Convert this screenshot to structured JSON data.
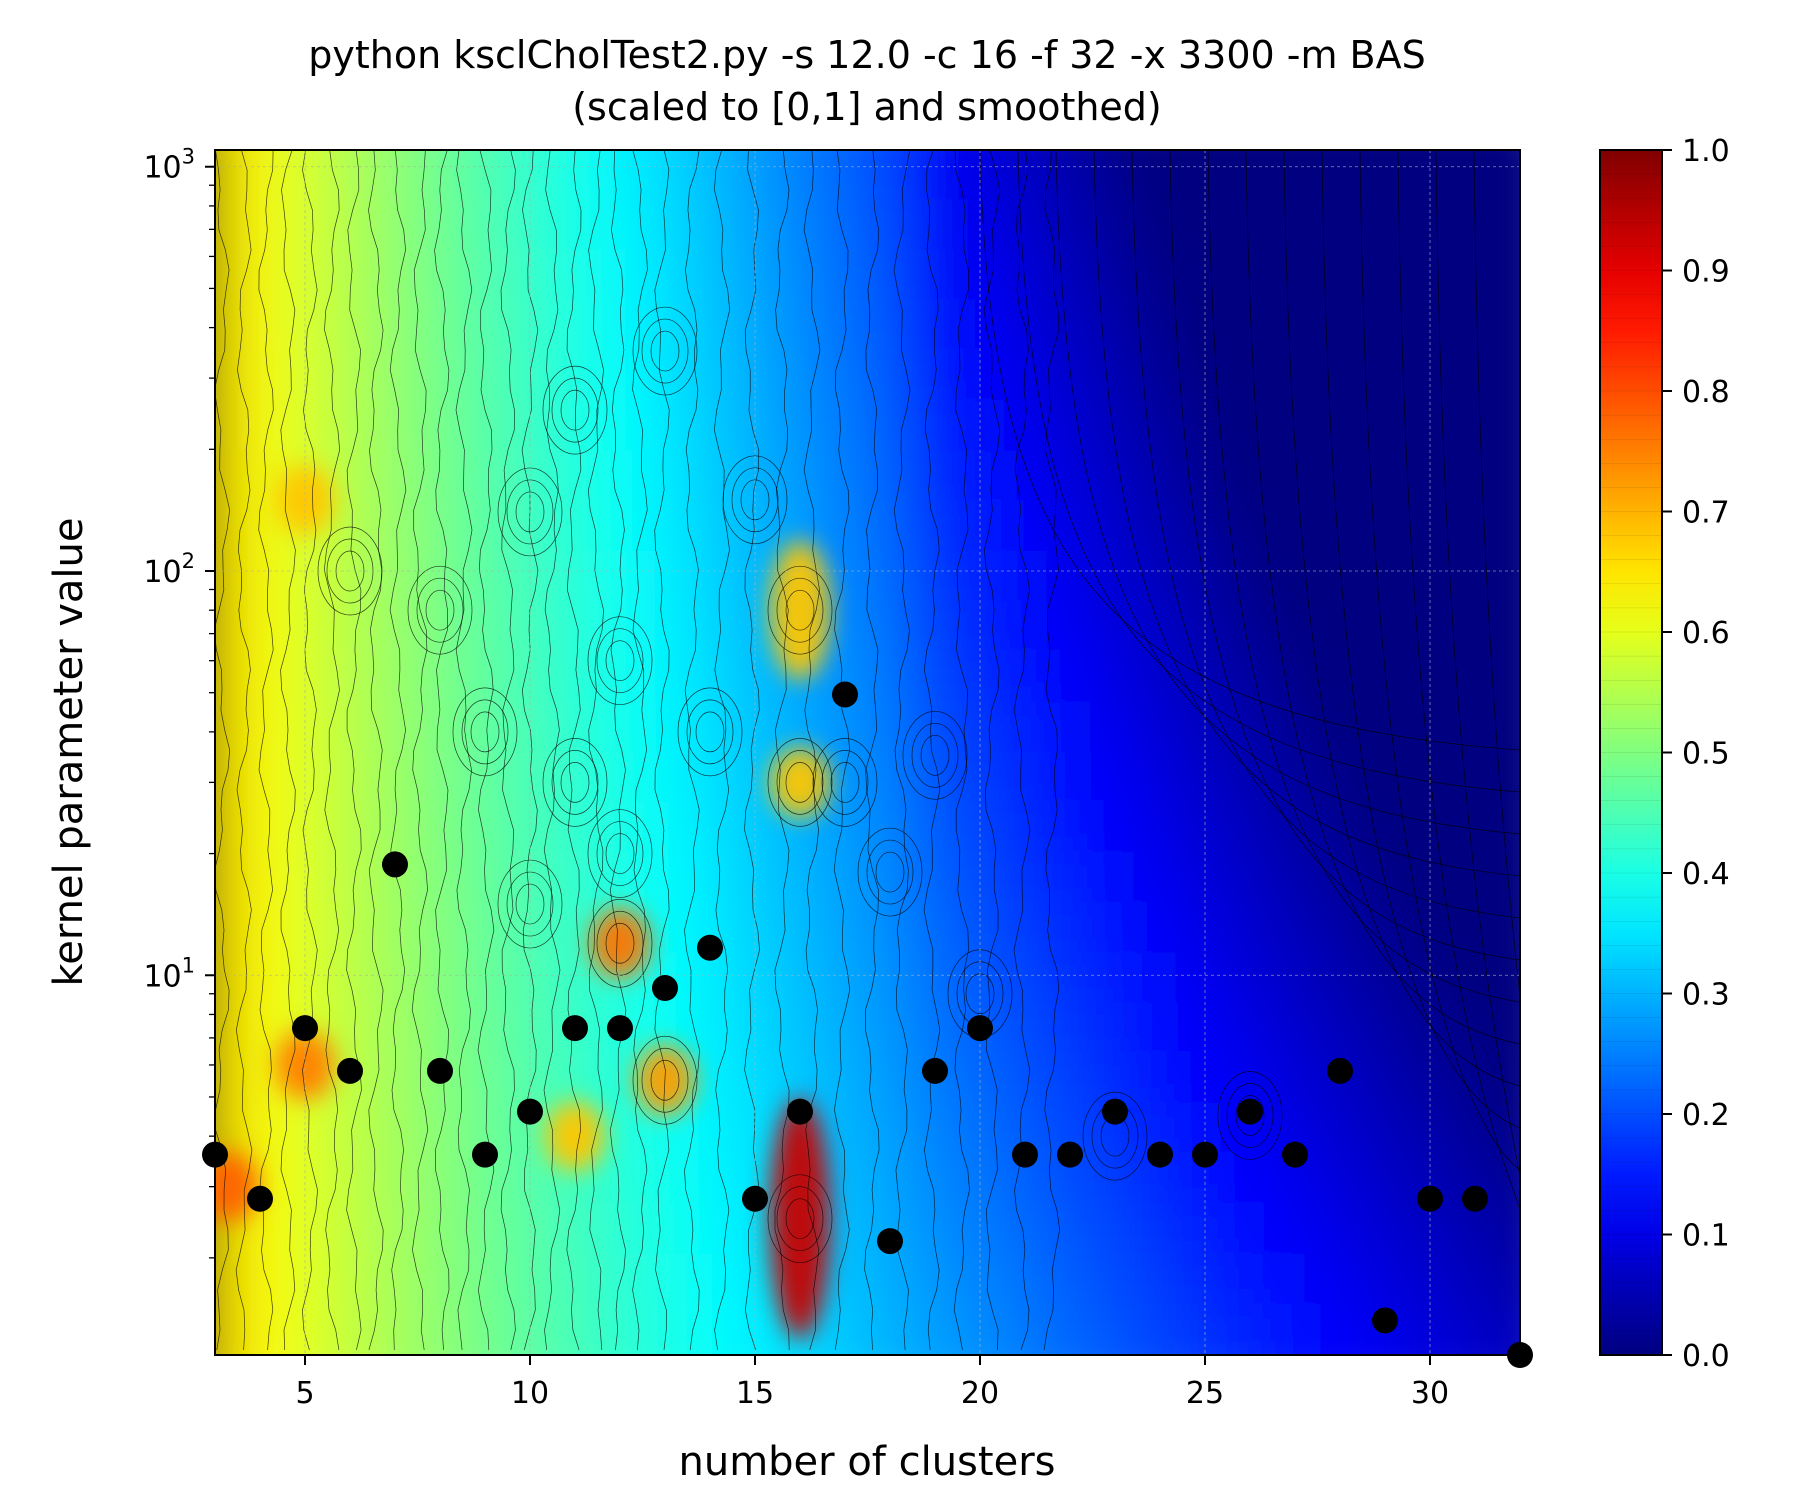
{
  "chart_data": {
    "type": "heatmap",
    "title": "python ksclCholTest2.py -s 12.0 -c 16 -f 32 -x 3300 -m BAS",
    "subtitle": "(scaled to [0,1] and smoothed)",
    "xlabel": "number of clusters",
    "ylabel": "kernel parameter value",
    "xlim": [
      3,
      32
    ],
    "ylim": [
      1.15,
      1100
    ],
    "yscale": "log",
    "grid": true,
    "colormap": "jet",
    "x_ticks": [
      5,
      10,
      15,
      20,
      25,
      30
    ],
    "y_ticks": [
      {
        "value": 10,
        "base": "10",
        "exp": "1"
      },
      {
        "value": 100,
        "base": "10",
        "exp": "2"
      },
      {
        "value": 1000,
        "base": "10",
        "exp": "3"
      }
    ],
    "colorbar": {
      "range": [
        0,
        1
      ],
      "ticks": [
        "0.0",
        "0.1",
        "0.2",
        "0.3",
        "0.4",
        "0.5",
        "0.6",
        "0.7",
        "0.8",
        "0.9",
        "1.0"
      ]
    },
    "selected_points": {
      "x": [
        3,
        4,
        5,
        6,
        7,
        8,
        9,
        10,
        11,
        12,
        13,
        14,
        15,
        16,
        17,
        18,
        19,
        20,
        21,
        22,
        23,
        24,
        25,
        26,
        27,
        28,
        29,
        30,
        31,
        32
      ],
      "y": [
        3.6,
        2.8,
        7.4,
        5.8,
        18.8,
        5.8,
        3.6,
        4.6,
        7.4,
        7.4,
        9.3,
        11.7,
        2.8,
        4.6,
        49.5,
        2.2,
        5.8,
        7.4,
        3.6,
        3.6,
        4.6,
        3.6,
        3.6,
        4.6,
        3.6,
        5.8,
        1.4,
        2.8,
        2.8,
        1.15
      ]
    },
    "surface_peaks": [
      {
        "x": 16,
        "y": 2.5,
        "value": 0.93
      },
      {
        "x": 16,
        "y": 80,
        "value": 0.68
      },
      {
        "x": 16,
        "y": 30,
        "value": 0.68
      },
      {
        "x": 3.3,
        "y": 3,
        "value": 0.78
      },
      {
        "x": 5,
        "y": 6,
        "value": 0.75
      },
      {
        "x": 5,
        "y": 150,
        "value": 0.68
      },
      {
        "x": 12,
        "y": 12,
        "value": 0.76
      },
      {
        "x": 13,
        "y": 5.5,
        "value": 0.72
      },
      {
        "x": 11,
        "y": 4,
        "value": 0.68
      }
    ]
  }
}
